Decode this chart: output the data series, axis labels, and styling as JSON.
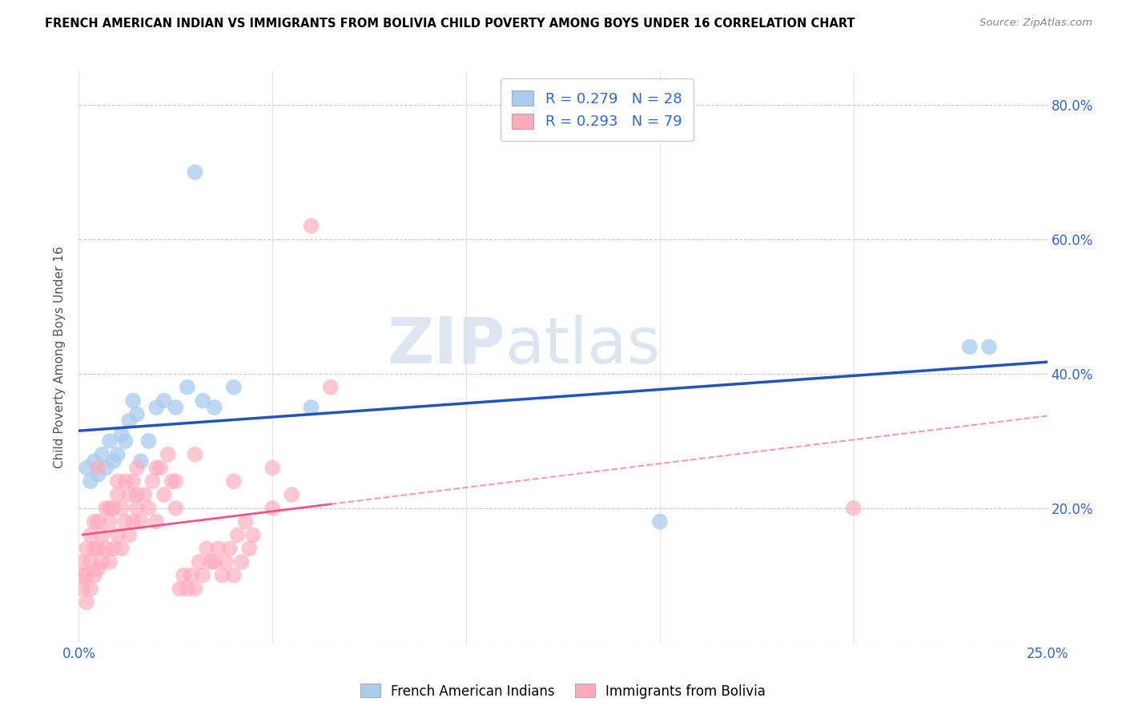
{
  "title": "FRENCH AMERICAN INDIAN VS IMMIGRANTS FROM BOLIVIA CHILD POVERTY AMONG BOYS UNDER 16 CORRELATION CHART",
  "source": "Source: ZipAtlas.com",
  "ylabel": "Child Poverty Among Boys Under 16",
  "xlim": [
    0.0,
    0.25
  ],
  "ylim": [
    0.0,
    0.85
  ],
  "xticks": [
    0.0,
    0.05,
    0.1,
    0.15,
    0.2,
    0.25
  ],
  "yticks": [
    0.0,
    0.2,
    0.4,
    0.6,
    0.8
  ],
  "xticklabels": [
    "0.0%",
    "",
    "",
    "",
    "",
    "25.0%"
  ],
  "yticklabels_right": [
    "",
    "20.0%",
    "40.0%",
    "60.0%",
    "80.0%"
  ],
  "blue_color": "#aaccee",
  "pink_color": "#ffaabb",
  "blue_line_color": "#2255bb",
  "pink_line_color": "#ee5588",
  "blue_R": 0.279,
  "blue_N": 28,
  "pink_R": 0.293,
  "pink_N": 79,
  "legend_label_blue": "French American Indians",
  "legend_label_pink": "Immigrants from Bolivia",
  "watermark_zip": "ZIP",
  "watermark_atlas": "atlas",
  "blue_x": [
    0.002,
    0.003,
    0.004,
    0.005,
    0.006,
    0.007,
    0.008,
    0.009,
    0.01,
    0.011,
    0.012,
    0.013,
    0.014,
    0.015,
    0.016,
    0.018,
    0.02,
    0.022,
    0.025,
    0.028,
    0.03,
    0.032,
    0.035,
    0.04,
    0.06,
    0.15,
    0.23,
    0.235
  ],
  "blue_y": [
    0.26,
    0.24,
    0.27,
    0.25,
    0.28,
    0.26,
    0.3,
    0.27,
    0.28,
    0.31,
    0.3,
    0.33,
    0.36,
    0.34,
    0.27,
    0.3,
    0.35,
    0.36,
    0.35,
    0.38,
    0.7,
    0.36,
    0.35,
    0.38,
    0.35,
    0.18,
    0.44,
    0.44
  ],
  "pink_x": [
    0.001,
    0.001,
    0.001,
    0.002,
    0.002,
    0.002,
    0.003,
    0.003,
    0.003,
    0.004,
    0.004,
    0.004,
    0.005,
    0.005,
    0.005,
    0.006,
    0.006,
    0.007,
    0.007,
    0.008,
    0.008,
    0.009,
    0.009,
    0.01,
    0.01,
    0.011,
    0.011,
    0.012,
    0.012,
    0.013,
    0.013,
    0.014,
    0.014,
    0.015,
    0.015,
    0.016,
    0.017,
    0.018,
    0.019,
    0.02,
    0.021,
    0.022,
    0.023,
    0.024,
    0.025,
    0.026,
    0.027,
    0.028,
    0.029,
    0.03,
    0.031,
    0.032,
    0.033,
    0.034,
    0.035,
    0.036,
    0.037,
    0.038,
    0.039,
    0.04,
    0.041,
    0.042,
    0.043,
    0.044,
    0.045,
    0.05,
    0.055,
    0.06,
    0.065,
    0.005,
    0.008,
    0.01,
    0.015,
    0.02,
    0.025,
    0.03,
    0.04,
    0.05,
    0.2
  ],
  "pink_y": [
    0.1,
    0.08,
    0.12,
    0.06,
    0.1,
    0.14,
    0.08,
    0.12,
    0.16,
    0.1,
    0.14,
    0.18,
    0.11,
    0.14,
    0.18,
    0.12,
    0.16,
    0.14,
    0.2,
    0.12,
    0.18,
    0.14,
    0.2,
    0.16,
    0.22,
    0.14,
    0.2,
    0.18,
    0.24,
    0.16,
    0.22,
    0.18,
    0.24,
    0.2,
    0.26,
    0.18,
    0.22,
    0.2,
    0.24,
    0.18,
    0.26,
    0.22,
    0.28,
    0.24,
    0.2,
    0.08,
    0.1,
    0.08,
    0.1,
    0.08,
    0.12,
    0.1,
    0.14,
    0.12,
    0.12,
    0.14,
    0.1,
    0.12,
    0.14,
    0.1,
    0.16,
    0.12,
    0.18,
    0.14,
    0.16,
    0.2,
    0.22,
    0.62,
    0.38,
    0.26,
    0.2,
    0.24,
    0.22,
    0.26,
    0.24,
    0.28,
    0.24,
    0.26,
    0.2
  ]
}
